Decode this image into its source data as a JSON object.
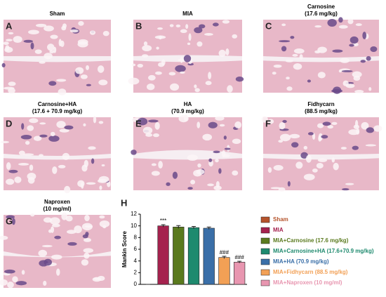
{
  "panels": [
    {
      "letter": "A",
      "title": [
        "Sham"
      ]
    },
    {
      "letter": "B",
      "title": [
        "MIA"
      ]
    },
    {
      "letter": "C",
      "title": [
        "Carnosine",
        "(17.6 mg/kg)"
      ]
    },
    {
      "letter": "D",
      "title": [
        "Carnosine+HA",
        "(17.6 + 70.9 mg/kg)"
      ]
    },
    {
      "letter": "E",
      "title": [
        "HA",
        "(70.9 mg/kg)"
      ]
    },
    {
      "letter": "F",
      "title": [
        "Fidhycarn",
        "(88.5 mg/kg)"
      ]
    },
    {
      "letter": "G",
      "title": [
        "Naproxen",
        "(10 mg/ml)"
      ]
    }
  ],
  "chart_data": {
    "type": "bar",
    "panel_letter": "H",
    "ylabel": "Mankin Score",
    "categories": [
      "Sham",
      "MIA",
      "MIA+Carnosine (17.6 mg/kg)",
      "MIA+Carnosine+HA (17.6+70.9 mg/kg)",
      "MIA+HA (70.9 mg/kg)",
      "MIA+Fidhycarn (88.5 mg/kg)",
      "MIA+Naproxen (10 mg/ml)"
    ],
    "values": [
      0,
      10.0,
      9.8,
      9.7,
      9.6,
      4.6,
      3.8
    ],
    "errors": [
      0,
      0.2,
      0.25,
      0.2,
      0.2,
      0.2,
      0.15
    ],
    "colors": [
      "#b5532b",
      "#a5224e",
      "#5a7a1e",
      "#1e8a6e",
      "#3a6fa8",
      "#f2a055",
      "#e896b0"
    ],
    "annotations": [
      {
        "category": "MIA",
        "text": "***"
      },
      {
        "category": "MIA+Fidhycarn (88.5 mg/kg)",
        "text": "###"
      },
      {
        "category": "MIA+Naproxen (10 mg/ml)",
        "text": "###"
      }
    ],
    "ylim": [
      0,
      12
    ],
    "yticks": [
      0,
      2,
      4,
      6,
      8,
      10,
      12
    ]
  }
}
